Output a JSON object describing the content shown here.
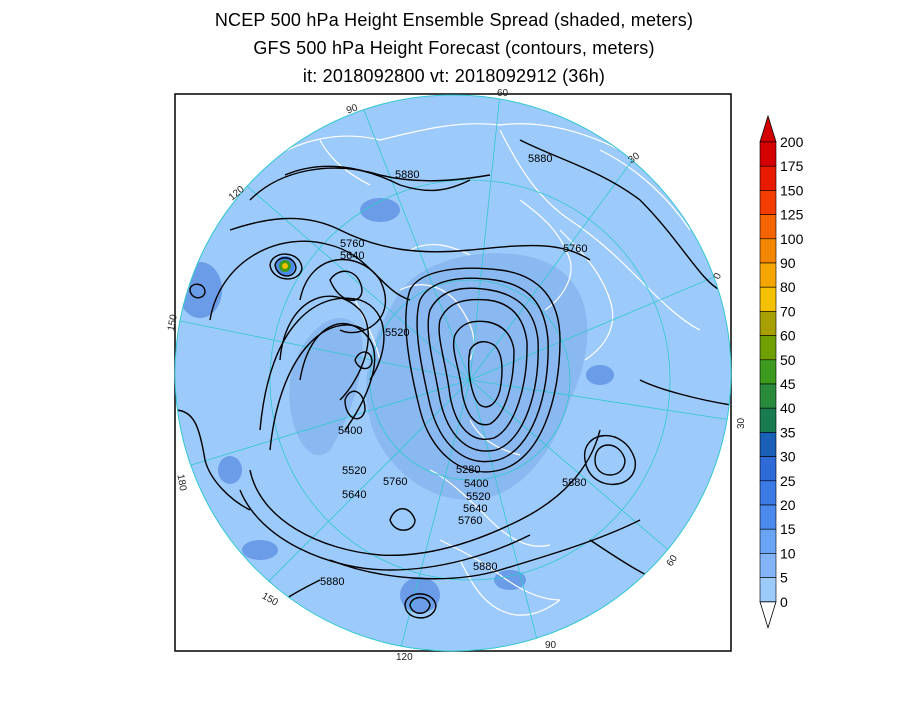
{
  "title": {
    "line1": "NCEP 500 hPa Height Ensemble Spread (shaded, meters)",
    "line2": "GFS 500 hPa Height Forecast (contours, meters)",
    "line3": "it: 2018092800      vt: 2018092912 (36h)"
  },
  "map": {
    "projection": "north-polar-stereographic",
    "longitude_labels": [
      "60",
      "30",
      "0",
      "30",
      "60",
      "90",
      "120",
      "150",
      "180",
      "150",
      "120",
      "90"
    ],
    "contour_labels": [
      "5880",
      "5880",
      "5760",
      "5640",
      "5760",
      "5520",
      "5400",
      "5520",
      "5640",
      "5760",
      "5280",
      "5400",
      "5520",
      "5640",
      "5760",
      "5880",
      "5880",
      "5880"
    ],
    "colors": {
      "ocean_shade": "#9ccafa",
      "land_shade": "#8ab8f0",
      "darker_shade": "#6a9ce8",
      "coastline": "#ffffff",
      "gridline": "#33c8d0",
      "contour": "#000000"
    }
  },
  "colorbar": {
    "levels": [
      "200",
      "175",
      "150",
      "125",
      "100",
      "90",
      "80",
      "70",
      "60",
      "50",
      "45",
      "40",
      "35",
      "30",
      "25",
      "20",
      "15",
      "10",
      "5",
      "0"
    ],
    "colors": [
      "#d40000",
      "#e81a00",
      "#f23c00",
      "#f56400",
      "#f58700",
      "#f5a500",
      "#f5c000",
      "#a8a000",
      "#70a000",
      "#3c9a1e",
      "#2a8a3c",
      "#1a7a50",
      "#1a60b8",
      "#2e6ad8",
      "#3c7ae6",
      "#4c8aee",
      "#6aa4f4",
      "#82b4f6",
      "#9ccafa",
      "#bcdcfc"
    ]
  }
}
